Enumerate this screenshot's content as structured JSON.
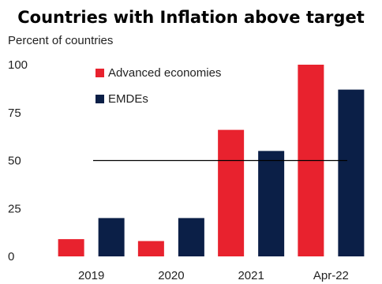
{
  "chart_data": {
    "type": "bar",
    "title": "Countries with Inflation above target",
    "ylabel": "Percent of countries",
    "xlabel": "",
    "categories": [
      "2019",
      "2020",
      "2021",
      "Apr-22"
    ],
    "series": [
      {
        "name": "Advanced economies",
        "color": "#e8222e",
        "values": [
          9,
          8,
          66,
          100
        ]
      },
      {
        "name": "EMDEs",
        "color": "#0b1f47",
        "values": [
          20,
          20,
          55,
          87
        ]
      }
    ],
    "ylim": [
      0,
      100
    ],
    "yticks": [
      "0",
      "25",
      "50",
      "75",
      "100"
    ],
    "reference_line": {
      "value": 50,
      "color": "#000000"
    },
    "grid": false,
    "legend_position": "top-left"
  }
}
